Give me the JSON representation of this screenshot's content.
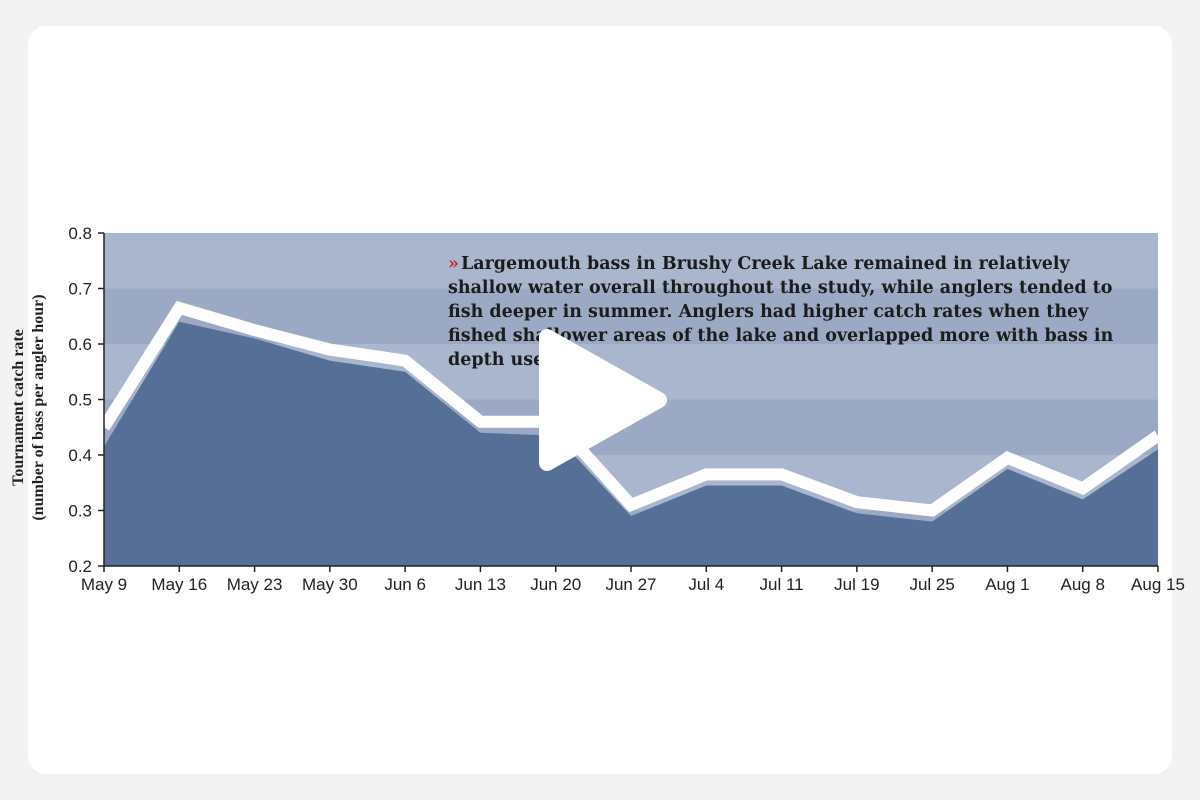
{
  "annotation": {
    "marker": "»",
    "text": "Largemouth bass in Brushy Creek Lake remained in relatively shallow water overall throughout the study, while anglers tended to fish deeper in summer. Anglers had higher catch rates when they fished shallower areas of the lake and overlapped more with bass in depth use."
  },
  "player": {
    "play_icon": "play-icon"
  },
  "chart_data": {
    "type": "area",
    "title": "",
    "xlabel": "",
    "ylabel_line1": "Tournament catch rate",
    "ylabel_line2": "(number of bass per angler hour)",
    "ylim": [
      0.2,
      0.8
    ],
    "yticks": [
      "0.2",
      "0.3",
      "0.4",
      "0.5",
      "0.6",
      "0.7",
      "0.8"
    ],
    "categories": [
      "May 9",
      "May 16",
      "May 23",
      "May 30",
      "Jun 6",
      "Jun 13",
      "Jun 20",
      "Jun 27",
      "Jul 4",
      "Jul 11",
      "Jul 19",
      "Jul 25",
      "Aug 1",
      "Aug 8",
      "Aug 15"
    ],
    "series": [
      {
        "values": [
          0.415,
          0.64,
          0.61,
          0.57,
          0.55,
          0.44,
          0.435,
          0.29,
          0.345,
          0.345,
          0.295,
          0.28,
          0.375,
          0.32,
          0.41
        ]
      },
      {
        "values": [
          0.45,
          0.665,
          0.625,
          0.59,
          0.57,
          0.46,
          0.46,
          0.31,
          0.365,
          0.365,
          0.315,
          0.3,
          0.395,
          0.34,
          0.435
        ]
      }
    ],
    "grid": true,
    "colors": {
      "area_fill": "#566f96",
      "line": "#ffffff",
      "band_dark": "#9ca9c4",
      "band_light": "#a9b6ce"
    }
  }
}
